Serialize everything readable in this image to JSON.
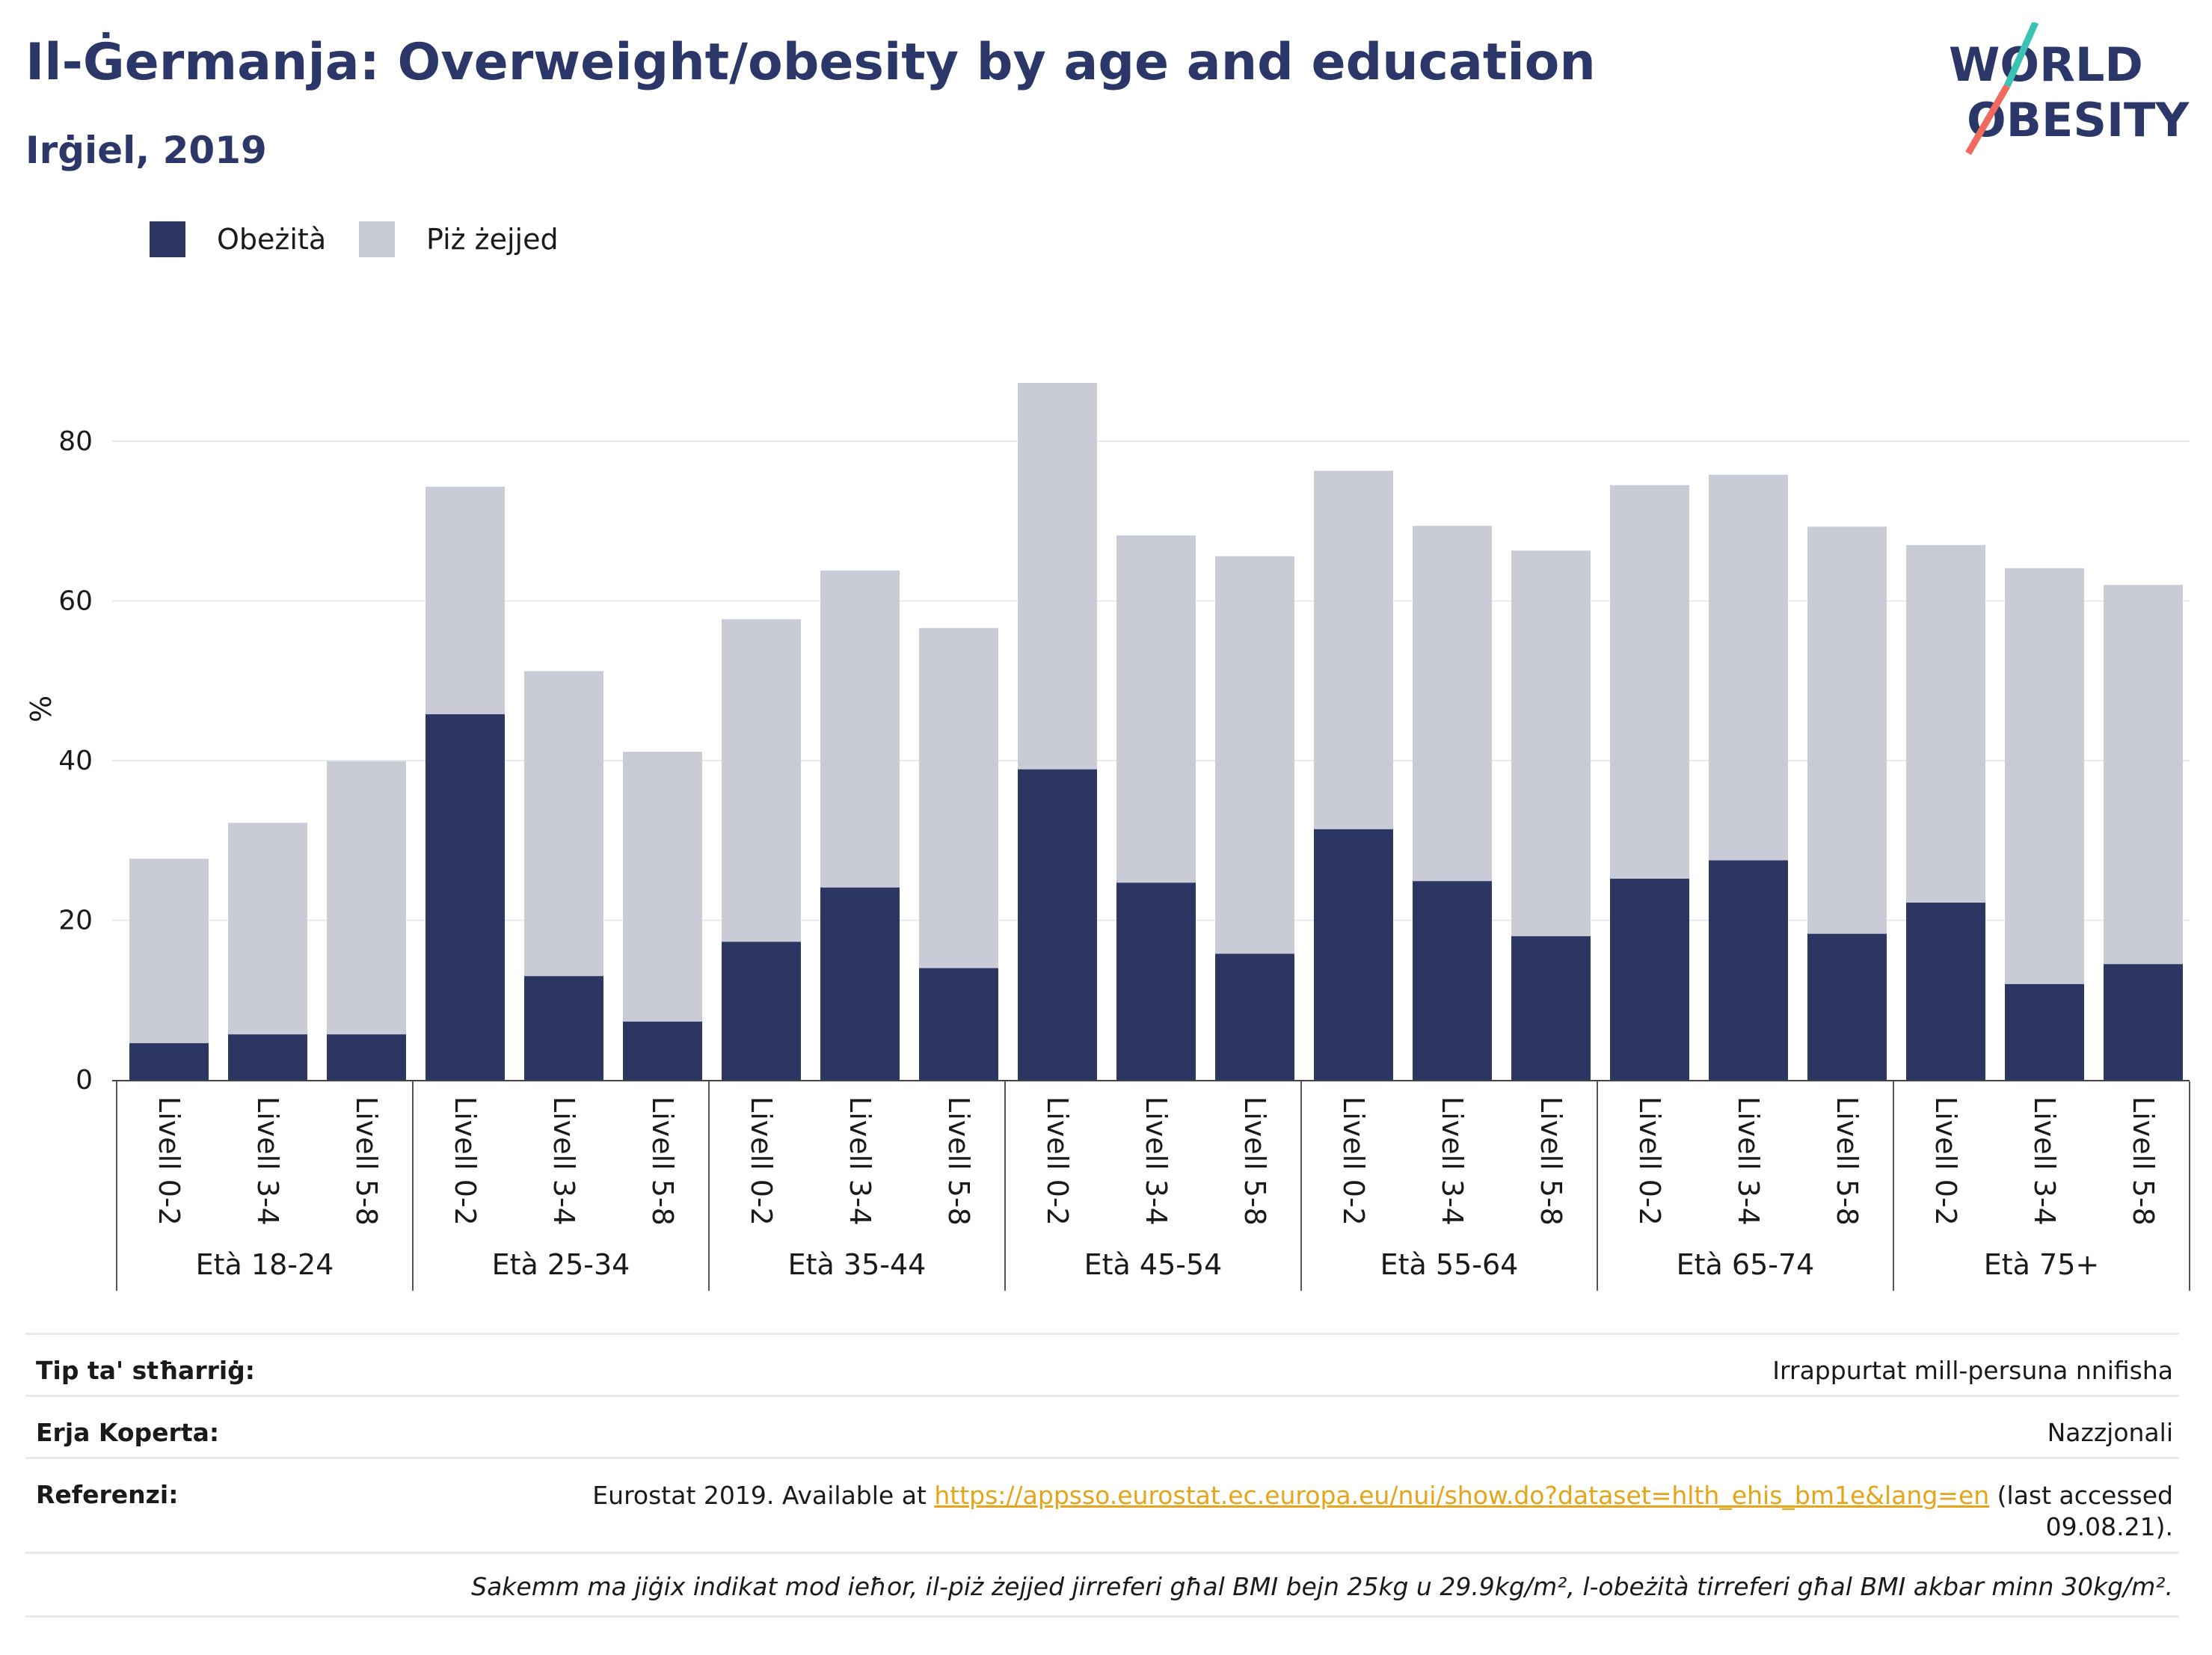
{
  "header": {
    "title": "Il-Ġermanja: Overweight/obesity by age and education",
    "subtitle": "Irġiel, 2019"
  },
  "logo": {
    "line1": "WORLD",
    "line2": "OBESITY",
    "colors": {
      "text": "#2b3769",
      "slash_top": "#3cc2b4",
      "slash_bottom": "#f06b5d"
    }
  },
  "legend": [
    {
      "label": "Obeżità",
      "color": "#2b3662"
    },
    {
      "label": "Piż żejjed",
      "color": "#c9cbd7"
    }
  ],
  "chart_data": {
    "type": "bar",
    "stacked": true,
    "ylabel": "%",
    "ylim": [
      0,
      90
    ],
    "yticks": [
      0,
      20,
      40,
      60,
      80
    ],
    "grid": true,
    "legend_position": "top-left",
    "groups": [
      {
        "label": "Età 18-24",
        "categories": [
          "Livell 0-2",
          "Livell 3-4",
          "Livell 5-8"
        ]
      },
      {
        "label": "Età 25-34",
        "categories": [
          "Livell 0-2",
          "Livell 3-4",
          "Livell 5-8"
        ]
      },
      {
        "label": "Età 35-44",
        "categories": [
          "Livell 0-2",
          "Livell 3-4",
          "Livell 5-8"
        ]
      },
      {
        "label": "Età 45-54",
        "categories": [
          "Livell 0-2",
          "Livell 3-4",
          "Livell 5-8"
        ]
      },
      {
        "label": "Età 55-64",
        "categories": [
          "Livell 0-2",
          "Livell 3-4",
          "Livell 5-8"
        ]
      },
      {
        "label": "Età 65-74",
        "categories": [
          "Livell 0-2",
          "Livell 3-4",
          "Livell 5-8"
        ]
      },
      {
        "label": "Età 75+",
        "categories": [
          "Livell 0-2",
          "Livell 3-4",
          "Livell 5-8"
        ]
      }
    ],
    "series": [
      {
        "name": "Obeżità",
        "color": "#2b3662",
        "values": [
          4.6,
          5.7,
          5.7,
          45.8,
          13.0,
          7.3,
          17.3,
          24.1,
          14.0,
          38.9,
          24.7,
          15.8,
          31.4,
          24.9,
          18.0,
          25.2,
          27.5,
          18.3,
          22.2,
          12.0,
          14.5
        ]
      },
      {
        "name": "Piż żejjed",
        "color": "#c9cbd7",
        "values": [
          23.1,
          26.5,
          34.2,
          28.5,
          38.2,
          33.8,
          40.4,
          39.7,
          42.6,
          48.4,
          43.5,
          49.8,
          44.9,
          44.5,
          48.3,
          49.3,
          48.3,
          51.0,
          44.8,
          52.1,
          47.5
        ]
      }
    ]
  },
  "footer": {
    "rows": [
      {
        "key": "Tip ta' stħarriġ:",
        "value": "Irrappurtat mill-persuna nnifisha"
      },
      {
        "key": "Erja Koperta:",
        "value": "Nazzjonali"
      }
    ],
    "reference": {
      "key": "Referenzi:",
      "prefix": "Eurostat 2019. Available at ",
      "link": "https://appsso.eurostat.ec.europa.eu/nui/show.do?dataset=hlth_ehis_bm1e&lang=en",
      "suffix_line1": " (last accessed",
      "suffix_line2": "09.08.21)."
    },
    "note": "Sakemm ma jiġix indikat mod ieħor, il-piż żejjed jirreferi għal BMI bejn 25kg u 29.9kg/m², l-obeżità tirreferi għal BMI akbar minn 30kg/m²."
  }
}
